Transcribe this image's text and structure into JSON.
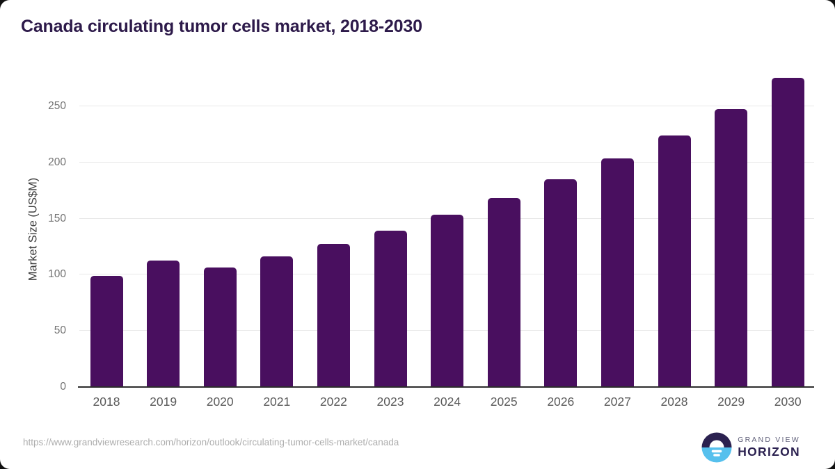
{
  "chart_data": {
    "type": "bar",
    "title": "Canada circulating tumor cells market, 2018-2030",
    "ylabel": "Market Size (US$M)",
    "xlabel": "",
    "categories": [
      "2018",
      "2019",
      "2020",
      "2021",
      "2022",
      "2023",
      "2024",
      "2025",
      "2026",
      "2027",
      "2028",
      "2029",
      "2030"
    ],
    "values": [
      99.0,
      112.6,
      106.5,
      116.4,
      127.3,
      139.2,
      153.3,
      168.5,
      185.0,
      203.4,
      223.8,
      247.3,
      275.2
    ],
    "yticks": [
      0,
      50,
      100,
      150,
      200,
      250
    ],
    "ylim": [
      0,
      281
    ],
    "grid": true,
    "legend": "none",
    "bar_color": "#490F5F"
  },
  "colors": {
    "bar": "#490F5F",
    "title_text": "#2D1A4A",
    "gridline": "#E8E8E8",
    "axis_line": "#2C2C2C",
    "y_tick_text": "#737373",
    "x_tick_text": "#5A5A5A",
    "source_text": "#ADADAD",
    "logo_navy": "#2B2150",
    "logo_blue": "#56C0ED"
  },
  "footer": {
    "source_url": "https://www.grandviewresearch.com/horizon/outlook/circulating-tumor-cells-market/canada",
    "brand_line1": "GRAND VIEW",
    "brand_line2": "HORIZON"
  }
}
